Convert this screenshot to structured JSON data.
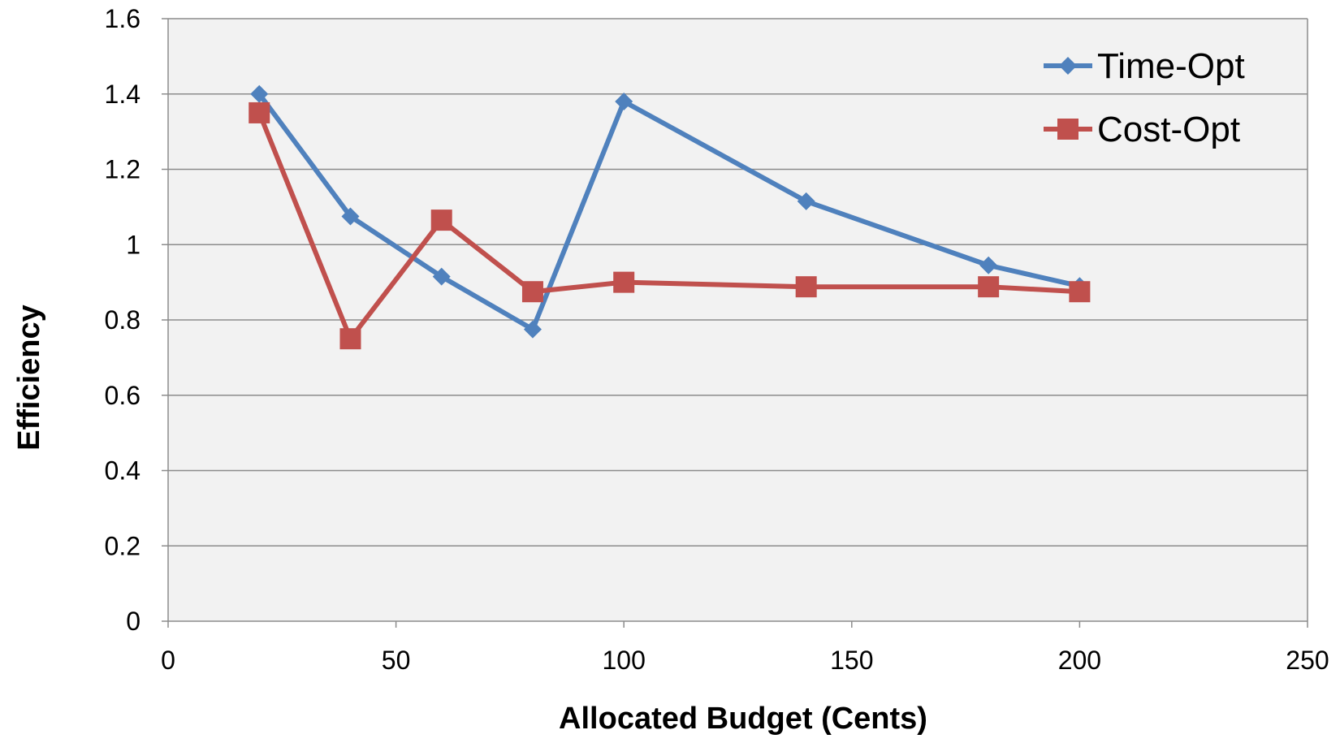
{
  "chart_data": {
    "type": "line",
    "xlabel": "Allocated Budget (Cents)",
    "ylabel": "Efficiency",
    "xlim": [
      0,
      250
    ],
    "ylim": [
      0,
      1.6
    ],
    "x_ticks": [
      "0",
      "50",
      "100",
      "150",
      "200",
      "250"
    ],
    "y_ticks": [
      "0",
      "0.2",
      "0.4",
      "0.6",
      "0.8",
      "1",
      "1.2",
      "1.4",
      "1.6"
    ],
    "x_tick_values": [
      0,
      50,
      100,
      150,
      200,
      250
    ],
    "y_tick_values": [
      0,
      0.2,
      0.4,
      0.6,
      0.8,
      1.0,
      1.2,
      1.4,
      1.6
    ],
    "grid": "horizontal",
    "plot_background": "#f2f2f2",
    "legend_position": "top-right",
    "series": [
      {
        "name": "Time-Opt",
        "color": "#4f81bd",
        "marker": "diamond",
        "x": [
          20,
          40,
          60,
          80,
          100,
          140,
          180,
          200
        ],
        "y": [
          1.4,
          1.075,
          0.915,
          0.775,
          1.38,
          1.115,
          0.945,
          0.89
        ]
      },
      {
        "name": "Cost-Opt",
        "color": "#c0504d",
        "marker": "square",
        "x": [
          20,
          40,
          60,
          80,
          100,
          140,
          180,
          200
        ],
        "y": [
          1.35,
          0.75,
          1.065,
          0.875,
          0.9,
          0.888,
          0.888,
          0.875
        ]
      }
    ]
  }
}
